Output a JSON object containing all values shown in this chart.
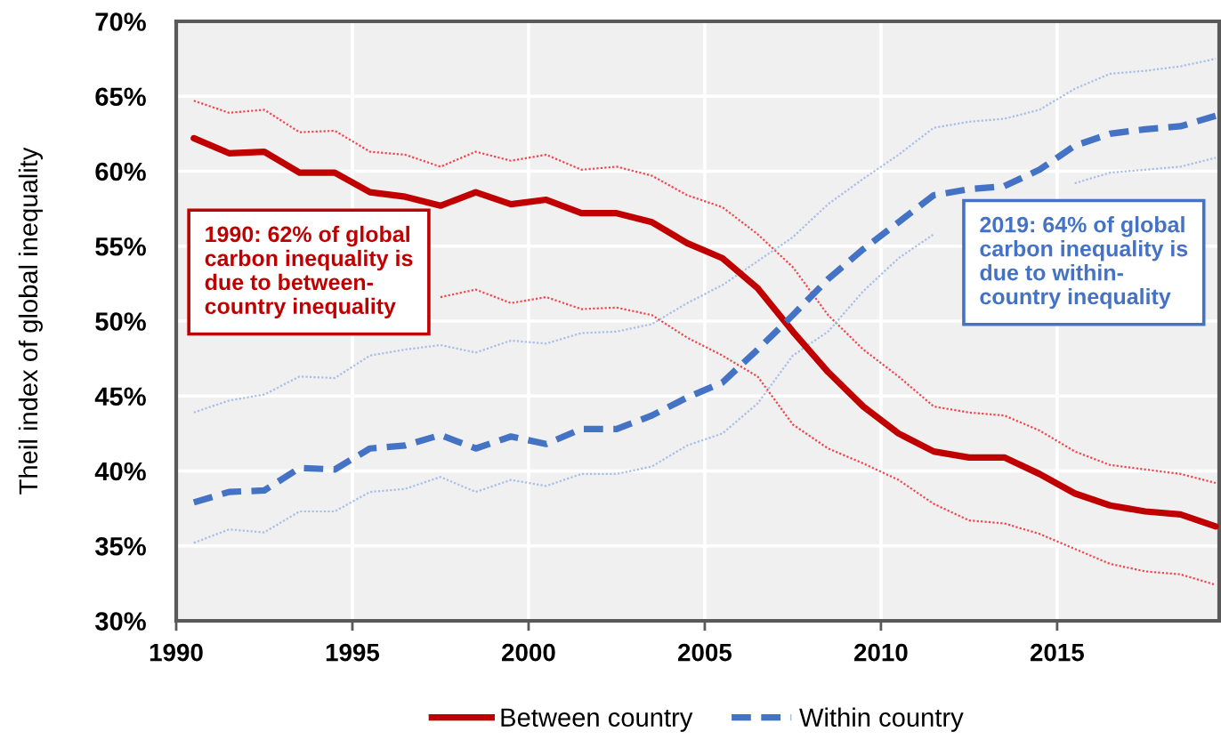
{
  "chart_data": {
    "type": "line",
    "x": [
      1990.5,
      1991.5,
      1992.5,
      1993.5,
      1994.5,
      1995.5,
      1996.5,
      1997.5,
      1998.5,
      1999.5,
      2000.5,
      2001.5,
      2002.5,
      2003.5,
      2004.5,
      2005.5,
      2006.5,
      2007.5,
      2008.5,
      2009.5,
      2010.5,
      2011.5,
      2012.5,
      2013.5,
      2014.5,
      2015.5,
      2016.5,
      2017.5,
      2018.5,
      2019.5
    ],
    "series": [
      {
        "name": "Between country",
        "color": "#c00000",
        "line_style": "solid",
        "values": [
          62.2,
          61.2,
          61.3,
          59.9,
          59.9,
          58.6,
          58.3,
          57.7,
          58.6,
          57.8,
          58.1,
          57.2,
          57.2,
          56.6,
          55.2,
          54.2,
          52.2,
          49.3,
          46.6,
          44.3,
          42.5,
          41.3,
          40.9,
          40.9,
          39.8,
          38.5,
          37.7,
          37.3,
          37.1,
          36.3
        ]
      },
      {
        "name": "Within country",
        "color": "#4472c4",
        "line_style": "dashed",
        "values": [
          37.9,
          38.6,
          38.7,
          40.2,
          40.1,
          41.5,
          41.7,
          42.4,
          41.5,
          42.3,
          41.8,
          42.8,
          42.8,
          43.7,
          44.9,
          45.9,
          48.1,
          50.4,
          52.8,
          54.8,
          56.6,
          58.4,
          58.8,
          59.0,
          60.1,
          61.7,
          62.5,
          62.8,
          63.0,
          63.7
        ]
      },
      {
        "color": "#f0474f",
        "line_style": "dotted",
        "values": [
          64.7,
          63.9,
          64.1,
          62.6,
          62.7,
          61.3,
          61.1,
          60.3,
          61.3,
          60.7,
          61.1,
          60.1,
          60.3,
          59.7,
          58.4,
          57.6,
          55.8,
          53.6,
          50.4,
          48.1,
          46.3,
          44.3,
          43.9,
          43.7,
          42.7,
          41.3,
          40.4,
          40.1,
          39.8,
          39.2
        ]
      },
      {
        "color": "#f0474f",
        "line_style": "dotted",
        "values": [
          null,
          null,
          null,
          null,
          null,
          null,
          null,
          51.6,
          52.1,
          51.2,
          51.6,
          50.8,
          50.9,
          50.4,
          48.9,
          47.7,
          46.3,
          43.1,
          41.5,
          40.5,
          39.4,
          37.8,
          36.7,
          36.5,
          35.8,
          34.8,
          33.8,
          33.3,
          33.1,
          32.4
        ]
      },
      {
        "color": "#a9bde8",
        "line_style": "dotted",
        "values": [
          43.9,
          44.7,
          45.1,
          46.3,
          46.2,
          47.7,
          48.1,
          48.4,
          47.9,
          48.7,
          48.5,
          49.2,
          49.3,
          49.8,
          51.2,
          52.4,
          54.0,
          55.6,
          57.8,
          59.5,
          61.1,
          62.9,
          63.3,
          63.5,
          64.1,
          65.5,
          66.5,
          66.7,
          67.0,
          67.5
        ]
      },
      {
        "color": "#a9bde8",
        "line_style": "dotted",
        "values": [
          35.2,
          36.1,
          35.9,
          37.3,
          37.3,
          38.6,
          38.8,
          39.6,
          38.6,
          39.4,
          39.0,
          39.8,
          39.8,
          40.3,
          41.7,
          42.5,
          44.5,
          47.7,
          49.3,
          52.0,
          54.2,
          55.8,
          null,
          null,
          null,
          59.2,
          59.9,
          60.1,
          60.3,
          60.9
        ]
      }
    ],
    "ylabel": "Theil index of global inequality",
    "xlim": [
      1990,
      2019.6
    ],
    "xticks": [
      1990,
      1995,
      2000,
      2005,
      2010,
      2015
    ],
    "ylim": [
      30,
      70
    ],
    "yticks": [
      {
        "value": 30,
        "label": "30%"
      },
      {
        "value": 35,
        "label": "35%"
      },
      {
        "value": 40,
        "label": "40%"
      },
      {
        "value": 45,
        "label": "45%"
      },
      {
        "value": 50,
        "label": "50%"
      },
      {
        "value": 55,
        "label": "55%"
      },
      {
        "value": 60,
        "label": "60%"
      },
      {
        "value": 65,
        "label": "65%"
      },
      {
        "value": 70,
        "label": "70%"
      }
    ],
    "annotations": [
      "1990: 62% of global\ncarbon inequality is\ndue to between-\ncountry inequality",
      "2019: 64% of global\ncarbon inequality is\ndue to within-\ncountry inequality"
    ],
    "grid": true,
    "legend": "bottom"
  }
}
